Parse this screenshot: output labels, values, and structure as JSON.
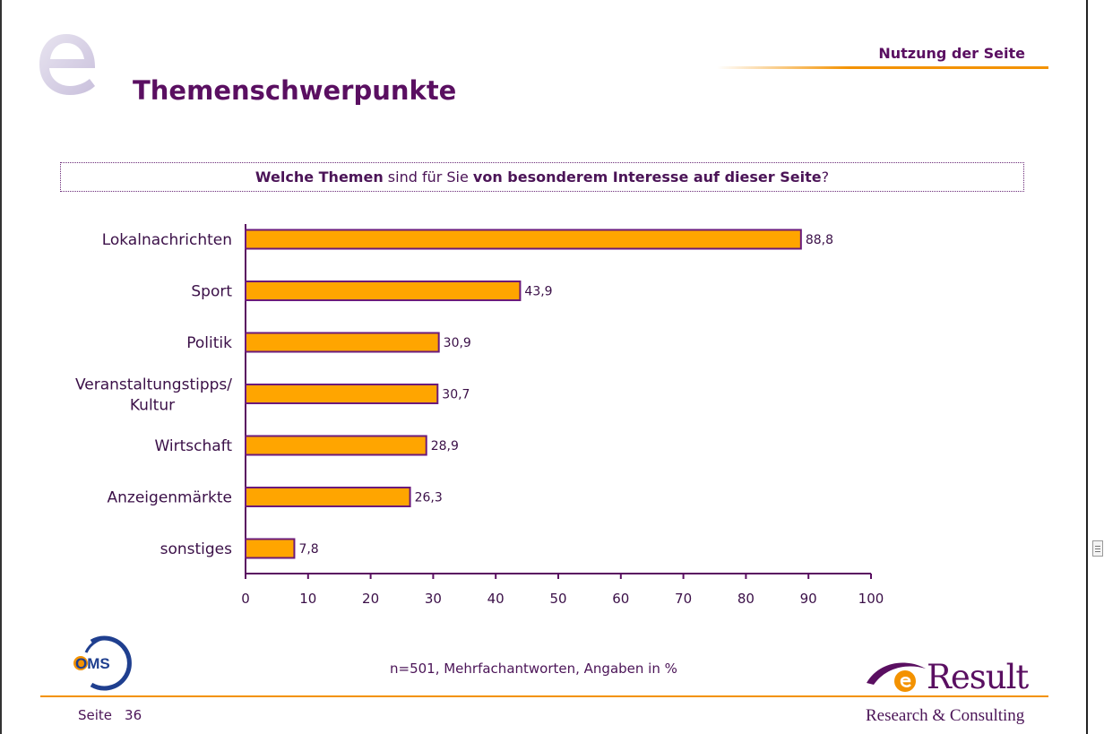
{
  "header": {
    "section_label": "Nutzung der Seite",
    "title": "Themenschwerpunkte"
  },
  "question": {
    "part1": "Welche Themen",
    "part2": " sind für Sie ",
    "part3": "von besonderem Interesse auf dieser Seite",
    "part4": "?"
  },
  "chart_data": {
    "type": "bar",
    "orientation": "horizontal",
    "categories": [
      [
        "Lokalnachrichten"
      ],
      [
        "Sport"
      ],
      [
        "Politik"
      ],
      [
        "Veranstaltungstipps/",
        "Kultur"
      ],
      [
        "Wirtschaft"
      ],
      [
        "Anzeigenmärkte"
      ],
      [
        "sonstiges"
      ]
    ],
    "values": [
      88.8,
      43.9,
      30.9,
      30.7,
      28.9,
      26.3,
      7.8
    ],
    "value_labels": [
      "88,8",
      "43,9",
      "30,9",
      "30,7",
      "28,9",
      "26,3",
      "7,8"
    ],
    "xlim": [
      0,
      100
    ],
    "ticks": [
      0,
      10,
      20,
      30,
      40,
      50,
      60,
      70,
      80,
      90,
      100
    ],
    "bar_color": "#ffa500",
    "bar_border_color": "#6b1a7a",
    "grid": false
  },
  "footer": {
    "footnote": "n=501, Mehrfachantworten, Angaben in %",
    "page_label": "Seite",
    "page_number": "36",
    "oms_logo_text": "OMS",
    "brand_name": "Result",
    "brand_tagline": "Research & Consulting"
  },
  "colors": {
    "accent": "#f39200",
    "purple": "#5a0f61"
  }
}
